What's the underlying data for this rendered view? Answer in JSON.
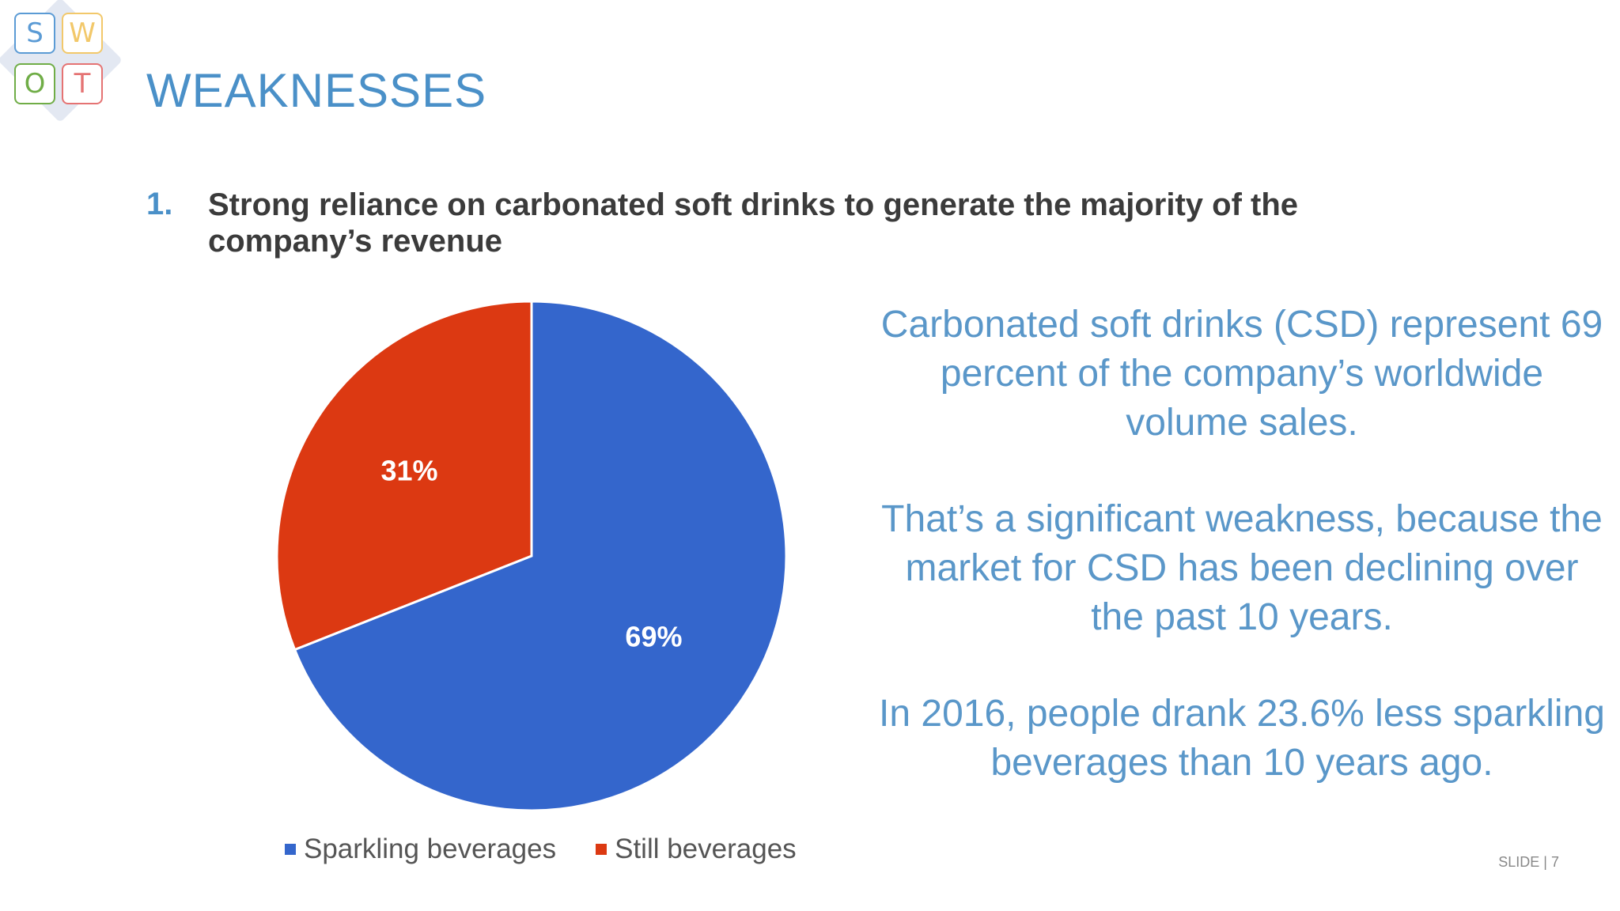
{
  "logo": {
    "letters": [
      "S",
      "W",
      "O",
      "T"
    ]
  },
  "title": "WEAKNESSES",
  "point": {
    "number": "1.",
    "text": "Strong reliance on carbonated soft drinks to generate the majority of the company’s revenue"
  },
  "colors": {
    "sparkling": "#3466cc",
    "still": "#dc3912",
    "title": "#4a90c8",
    "body": "#5a97c9"
  },
  "chart_data": {
    "type": "pie",
    "title": "",
    "categories": [
      "Sparkling beverages",
      "Still beverages"
    ],
    "values": [
      69,
      31
    ],
    "data_labels": [
      "69%",
      "31%"
    ],
    "colors": [
      "#3466cc",
      "#dc3912"
    ],
    "legend_position": "bottom",
    "start_angle": "12 o'clock, clockwise"
  },
  "paragraphs": [
    "Carbonated soft drinks (CSD) represent 69 percent of the company’s worldwide volume sales.",
    "That’s a significant weakness, because the market for CSD has been declining over the past 10 years.",
    "In 2016, people drank 23.6% less sparkling beverages than 10 years ago."
  ],
  "slide_number": "SLIDE | 7"
}
